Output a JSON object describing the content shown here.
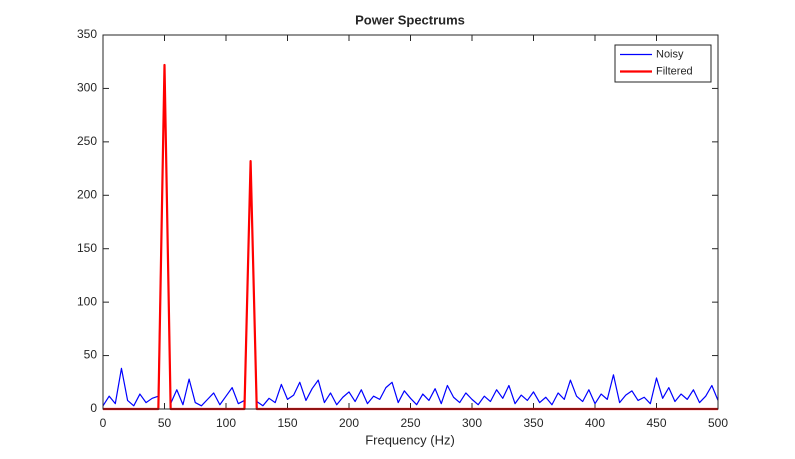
{
  "chart_data": {
    "type": "line",
    "title": "Power Spectrums",
    "x_label": "Frequency (Hz)",
    "x": [
      0,
      5,
      10,
      15,
      20,
      25,
      30,
      35,
      40,
      45,
      50,
      55,
      60,
      65,
      70,
      75,
      80,
      85,
      90,
      95,
      100,
      105,
      110,
      115,
      120,
      125,
      130,
      135,
      140,
      145,
      150,
      155,
      160,
      165,
      170,
      175,
      180,
      185,
      190,
      195,
      200,
      205,
      210,
      215,
      220,
      225,
      230,
      235,
      240,
      245,
      250,
      255,
      260,
      265,
      270,
      275,
      280,
      285,
      290,
      295,
      300,
      305,
      310,
      315,
      320,
      325,
      330,
      335,
      340,
      345,
      350,
      355,
      360,
      365,
      370,
      375,
      380,
      385,
      390,
      395,
      400,
      405,
      410,
      415,
      420,
      425,
      430,
      435,
      440,
      445,
      450,
      455,
      460,
      465,
      470,
      475,
      480,
      485,
      490,
      495,
      500
    ],
    "series": [
      {
        "name": "Noisy",
        "color": "#0000ff",
        "width": 1.2,
        "values": [
          3,
          12,
          5,
          38,
          8,
          3,
          14,
          6,
          10,
          12,
          322,
          5,
          18,
          4,
          28,
          6,
          3,
          9,
          15,
          4,
          12,
          20,
          5,
          8,
          232,
          7,
          3,
          10,
          6,
          23,
          9,
          13,
          25,
          8,
          19,
          27,
          6,
          15,
          4,
          11,
          16,
          7,
          18,
          5,
          12,
          9,
          20,
          25,
          6,
          17,
          10,
          4,
          14,
          8,
          19,
          5,
          22,
          11,
          6,
          15,
          9,
          4,
          12,
          7,
          18,
          10,
          22,
          5,
          13,
          8,
          16,
          6,
          11,
          4,
          15,
          9,
          27,
          12,
          7,
          18,
          5,
          14,
          9,
          32,
          6,
          13,
          17,
          8,
          11,
          5,
          29,
          10,
          20,
          7,
          14,
          9,
          18,
          6,
          12,
          22,
          8
        ]
      },
      {
        "name": "Filtered",
        "color": "#ff0000",
        "width": 2.2,
        "values": [
          0,
          0,
          0,
          0,
          0,
          0,
          0,
          0,
          0,
          0,
          322,
          0,
          0,
          0,
          0,
          0,
          0,
          0,
          0,
          0,
          0,
          0,
          0,
          0,
          232,
          0,
          0,
          0,
          0,
          0,
          0,
          0,
          0,
          0,
          0,
          0,
          0,
          0,
          0,
          0,
          0,
          0,
          0,
          0,
          0,
          0,
          0,
          0,
          0,
          0,
          0,
          0,
          0,
          0,
          0,
          0,
          0,
          0,
          0,
          0,
          0,
          0,
          0,
          0,
          0,
          0,
          0,
          0,
          0,
          0,
          0,
          0,
          0,
          0,
          0,
          0,
          0,
          0,
          0,
          0,
          0,
          0,
          0,
          0,
          0,
          0,
          0,
          0,
          0,
          0,
          0,
          0,
          0,
          0,
          0,
          0,
          0,
          0,
          0,
          0,
          0
        ]
      }
    ],
    "xlim": [
      0,
      500
    ],
    "xticks": [
      0,
      50,
      100,
      150,
      200,
      250,
      300,
      350,
      400,
      450,
      500
    ],
    "ylim": [
      0,
      350
    ],
    "yticks": [
      0,
      50,
      100,
      150,
      200,
      250,
      300,
      350
    ],
    "legend": "top-right",
    "grid": false
  }
}
